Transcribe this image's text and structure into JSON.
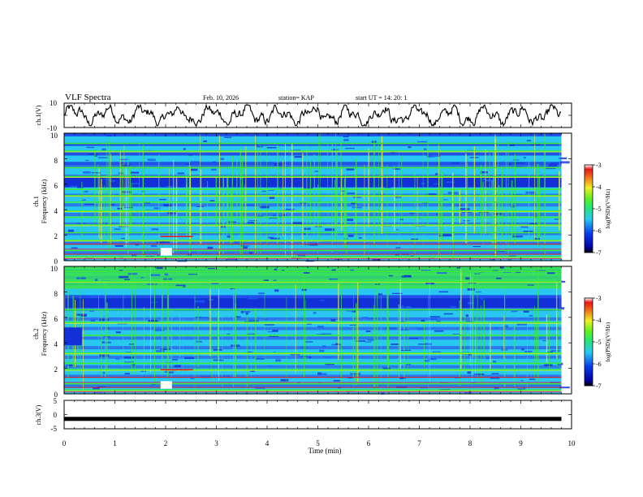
{
  "header": {
    "title": "VLF Spectra",
    "date": "Feb. 10, 2026",
    "station": "station= KAP",
    "start": "start  UT  =   14: 20: 1"
  },
  "time_axis": {
    "label": "Time  (min)",
    "ticks": [
      "0",
      "1",
      "2",
      "3",
      "4",
      "5",
      "6",
      "7",
      "8",
      "9",
      "10"
    ]
  },
  "ch1_waveform": {
    "ylabel": "ch.1(V)",
    "ticks": [
      "10",
      "-10"
    ]
  },
  "spec1": {
    "ylabel_top": "ch.1",
    "ylabel_bottom": "Frequency  (kHz)",
    "ticks": [
      "10",
      "8",
      "6",
      "4",
      "2",
      "0"
    ]
  },
  "spec2": {
    "ylabel_top": "ch.2",
    "ylabel_bottom": "Frequency  (kHz)",
    "ticks": [
      "10",
      "8",
      "6",
      "4",
      "2",
      "0"
    ]
  },
  "ch3": {
    "ylabel": "ch.3(V)",
    "ticks": [
      "5",
      "0",
      "-5"
    ]
  },
  "colorbar1": {
    "label": "log(PSD)(V²/Hz)",
    "ticks": [
      "-3",
      "-4",
      "-5",
      "-6",
      "-7"
    ]
  },
  "colorbar2": {
    "label": "log(PSD)(V²/Hz)",
    "ticks": [
      "-3",
      "-4",
      "-5",
      "-6",
      "-7"
    ]
  },
  "chart_data": [
    {
      "type": "line",
      "title": "VLF Spectra",
      "ylabel": "ch.1(V)",
      "xlabel": "Time  (min)",
      "xlim": [
        0,
        10
      ],
      "ylim": [
        -10,
        10
      ],
      "series": [
        {
          "name": "ch.1",
          "note": "noisy waveform, amplitude roughly within ±8 V, data ends near 9.8 min"
        }
      ]
    },
    {
      "type": "heatmap",
      "ylabel": "Frequency  (kHz)",
      "xlim": [
        0,
        10
      ],
      "ylim": [
        0,
        10
      ],
      "colorbar": {
        "label": "log(PSD)(V²/Hz)",
        "range": [
          -7,
          -3
        ]
      },
      "bands_khz": [
        0.3,
        0.8,
        1.6,
        2.2,
        2.8,
        3.4,
        3.9,
        4.6,
        5.1,
        5.6,
        6.6,
        7.3,
        8.6,
        9.2
      ],
      "dark_band_khz": [
        5.8,
        6.4
      ]
    },
    {
      "type": "heatmap",
      "ylabel": "Frequency  (kHz)",
      "xlim": [
        0,
        10
      ],
      "ylim": [
        0,
        10
      ],
      "colorbar": {
        "label": "log(PSD)(V²/Hz)",
        "range": [
          -7,
          -3
        ]
      },
      "bands_khz": [
        0.3,
        0.8,
        1.9,
        2.4,
        3.2,
        4.6,
        5.6,
        6.6,
        8.8,
        9.6
      ],
      "dark_band_khz": [
        6.8,
        7.6
      ]
    },
    {
      "type": "line",
      "ylabel": "ch.3(V)",
      "xlim": [
        0,
        10
      ],
      "ylim": [
        -5,
        5
      ],
      "series": [
        {
          "name": "ch.3",
          "note": "thick constant trace near -1.5 V up to ~9.8 min"
        }
      ]
    }
  ],
  "colors": {
    "ink": "#000000",
    "spec_blue": "#1330d8",
    "spec_cyan": "#28c8f0",
    "spec_green": "#3ce83c",
    "spec_yellow": "#f0f020",
    "spec_red": "#e81818"
  }
}
